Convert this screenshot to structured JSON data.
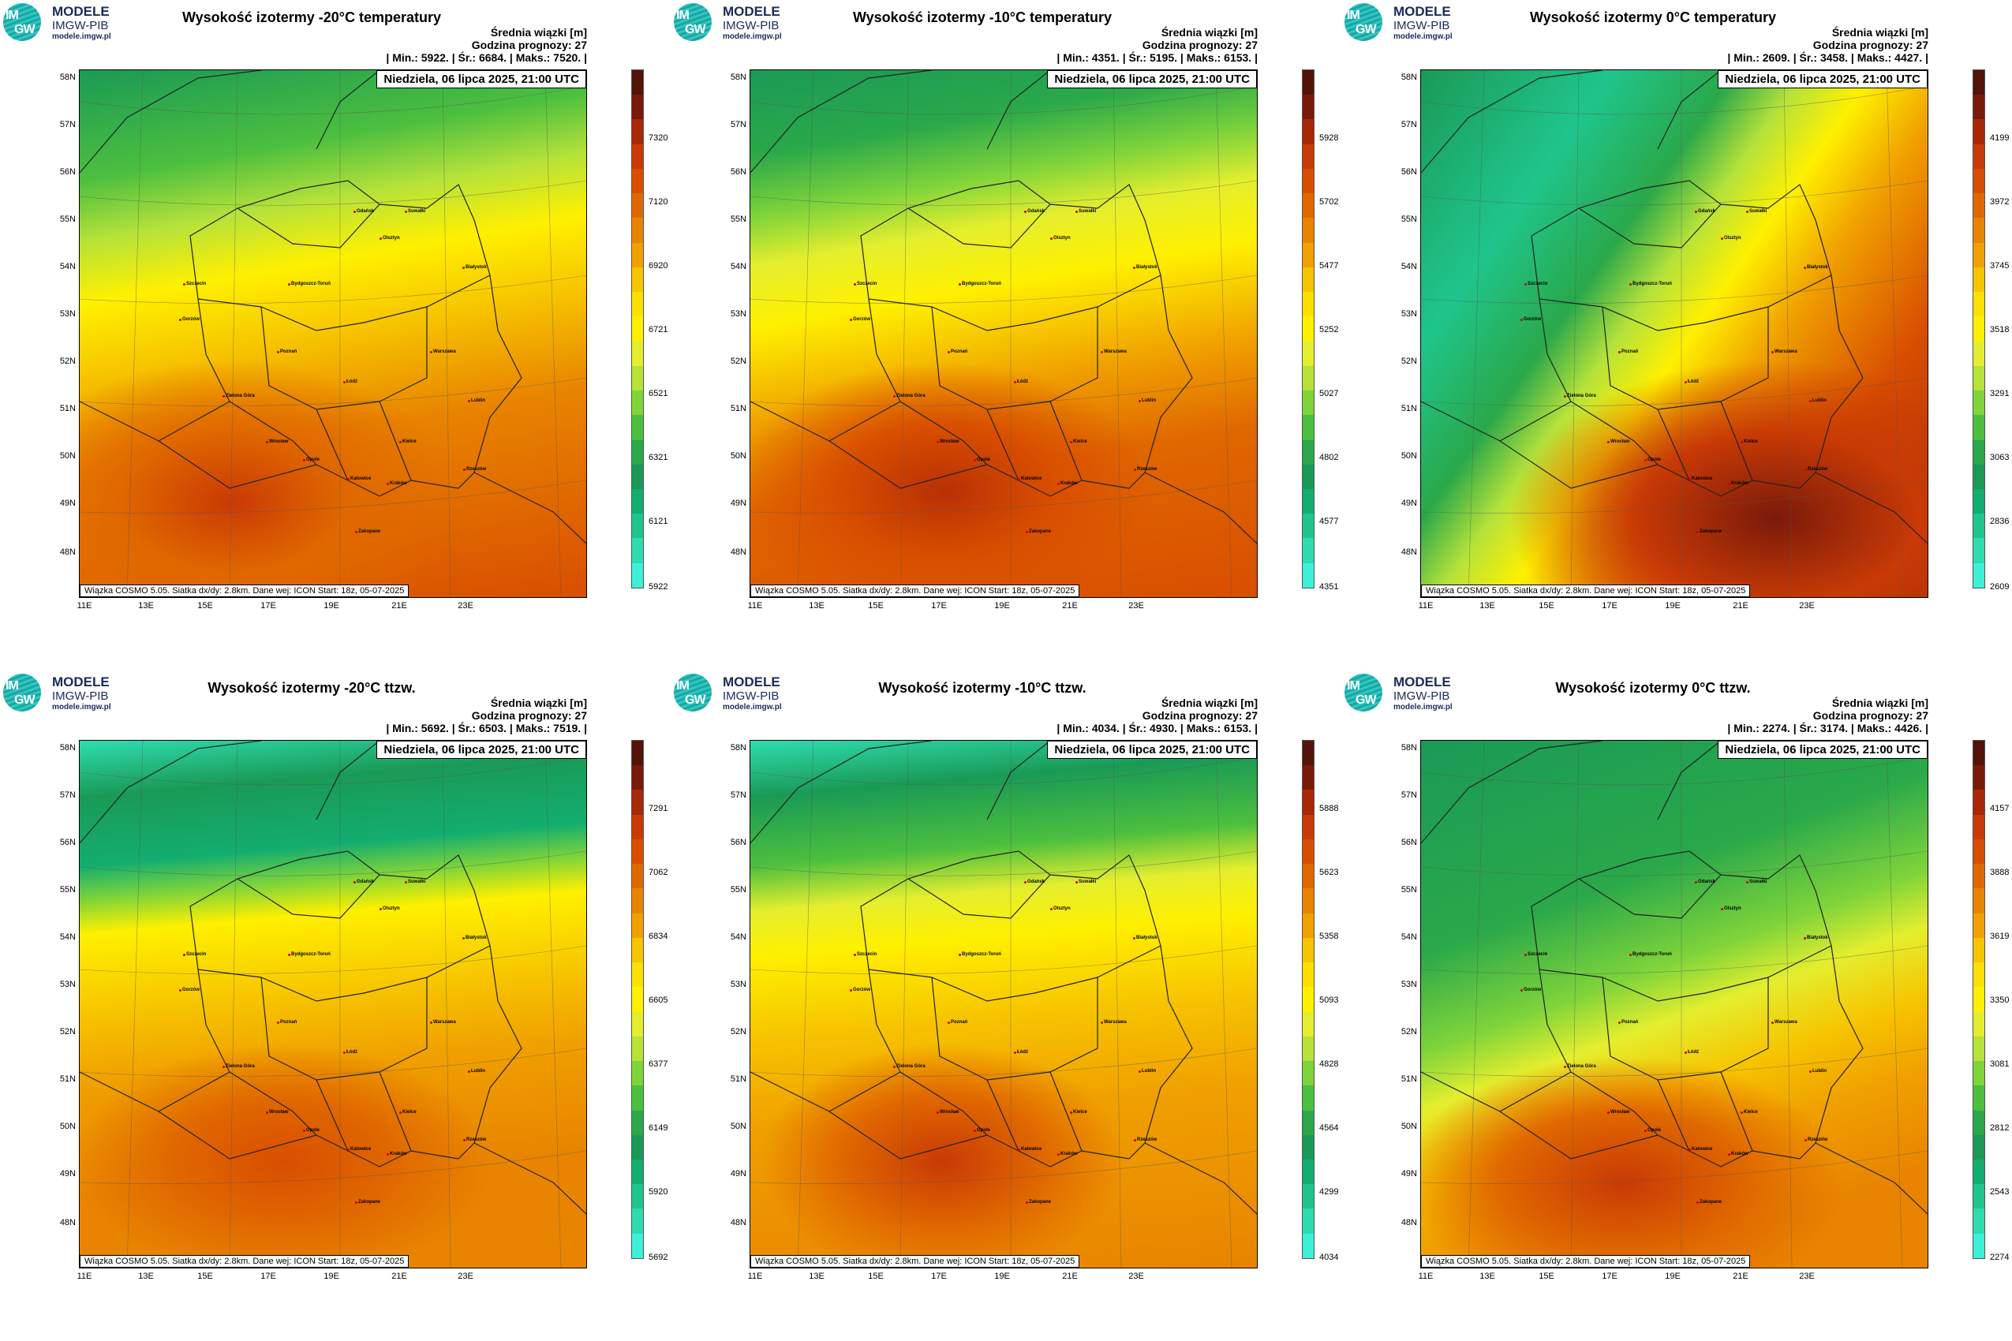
{
  "logo": {
    "line1": "MODELE",
    "line2": "IMGW-PIB",
    "line3": "modele.imgw.pl",
    "im": "IM",
    "gw": "GW"
  },
  "common": {
    "info_header": "Średnia wiązki [m]",
    "forecast_hour": "Godzina prognozy: 27",
    "date": "Niedziela, 06 lipca 2025, 21:00 UTC",
    "footer": "Wiązka COSMO 5.05. Siatka dx/dy: 2.8km. Dane wej: ICON Start: 18z, 05-07-2025",
    "lat_labels": [
      "58N",
      "57N",
      "56N",
      "55N",
      "54N",
      "53N",
      "52N",
      "51N",
      "50N",
      "49N",
      "48N"
    ],
    "lon_labels": [
      "11E",
      "13E",
      "15E",
      "17E",
      "19E",
      "21E",
      "23E"
    ],
    "cities": [
      "Gdańsk",
      "Suwałki",
      "Olsztyn",
      "Szczecin",
      "Bydgoszcz-Toruń",
      "Białystok",
      "Gorzów",
      "Poznań",
      "Warszawa",
      "Zielona Góra",
      "Łódź",
      "Lublin",
      "Wrocław",
      "Kielce",
      "Opole",
      "Rzeszów",
      "Katowice",
      "Kraków",
      "Zakopane"
    ]
  },
  "colors": {
    "scale": [
      "#3ef0d8",
      "#2fdcb0",
      "#1fc58c",
      "#13ad70",
      "#1a9a56",
      "#2aa84a",
      "#4cbf3e",
      "#7fd43a",
      "#b6e23a",
      "#e4ee2e",
      "#fff000",
      "#fde000",
      "#f7c400",
      "#f0a000",
      "#e88400",
      "#e06800",
      "#d84e00",
      "#c83a06",
      "#a82808",
      "#7a1a0a",
      "#521408"
    ]
  },
  "panels": [
    {
      "title": "Wysokość izotermy -20°C temperatury",
      "stats": "| Min.:   5922. | Śr.:   6684. | Maks.:   7520. |",
      "cbar_labels": [
        "7320",
        "7120",
        "6920",
        "6721",
        "6521",
        "6321",
        "6121",
        "5922"
      ]
    },
    {
      "title": "Wysokość izotermy -10°C temperatury",
      "stats": "| Min.:   4351. | Śr.:   5195. | Maks.:   6153. |",
      "cbar_labels": [
        "5928",
        "5702",
        "5477",
        "5252",
        "5027",
        "4802",
        "4577",
        "4351"
      ]
    },
    {
      "title": "Wysokość izotermy 0°C temperatury",
      "stats": "| Min.:   2609. | Śr.:   3458. | Maks.:   4427. |",
      "cbar_labels": [
        "4199",
        "3972",
        "3745",
        "3518",
        "3291",
        "3063",
        "2836",
        "2609"
      ]
    },
    {
      "title": "Wysokość izotermy -20°C ttzw.",
      "stats": "| Min.:   5692. | Śr.:   6503. | Maks.:   7519. |",
      "cbar_labels": [
        "7291",
        "7062",
        "6834",
        "6605",
        "6377",
        "6149",
        "5920",
        "5692"
      ]
    },
    {
      "title": "Wysokość izotermy -10°C ttzw.",
      "stats": "| Min.:   4034. | Śr.:   4930. | Maks.:   6153. |",
      "cbar_labels": [
        "5888",
        "5623",
        "5358",
        "5093",
        "4828",
        "4564",
        "4299",
        "4034"
      ]
    },
    {
      "title": "Wysokość izotermy 0°C ttzw.",
      "stats": "| Min.:   2274. | Śr.:   3174. | Maks.:   4426. |",
      "cbar_labels": [
        "4157",
        "3888",
        "3619",
        "3350",
        "3081",
        "2812",
        "2543",
        "2274"
      ]
    }
  ]
}
